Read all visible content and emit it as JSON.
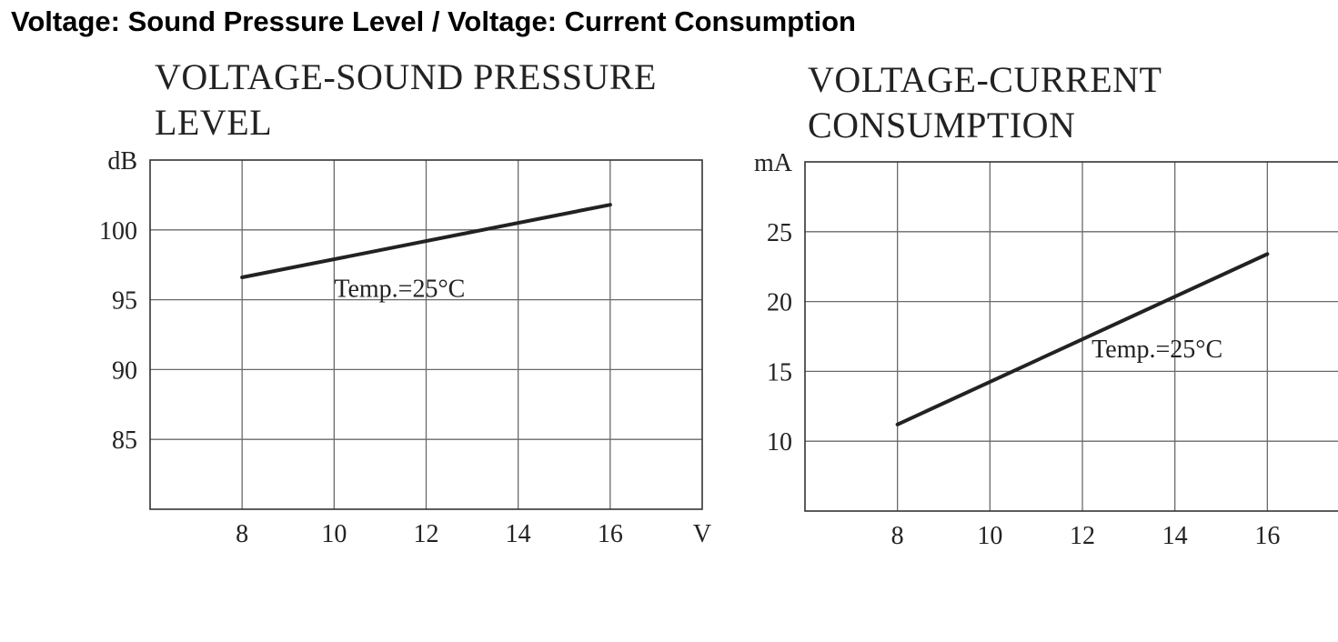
{
  "page": {
    "title": "Voltage: Sound Pressure Level / Voltage: Current Consumption"
  },
  "chart_data": [
    {
      "type": "line",
      "title_lines": [
        "VOLTAGE-SOUND PRESSURE",
        "LEVEL"
      ],
      "xlabel": "V",
      "ylabel": "dB",
      "xlim": [
        6,
        18
      ],
      "ylim": [
        80,
        105
      ],
      "x_ticks": [
        8,
        10,
        12,
        14,
        16
      ],
      "y_ticks": [
        85,
        90,
        95,
        100
      ],
      "grid": true,
      "series": [
        {
          "name": "Temp.=25°C",
          "x": [
            8,
            16
          ],
          "y": [
            96.6,
            101.8
          ]
        }
      ],
      "annotation": {
        "text": "Temp.=25°C",
        "x": 10,
        "y": 95.2
      }
    },
    {
      "type": "line",
      "title_lines": [
        "VOLTAGE-CURRENT",
        "CONSUMPTION"
      ],
      "xlabel": "",
      "ylabel": "mA",
      "xlim": [
        6,
        18
      ],
      "ylim": [
        5,
        30
      ],
      "x_ticks": [
        8,
        10,
        12,
        14,
        16
      ],
      "y_ticks": [
        10,
        15,
        20,
        25
      ],
      "grid": true,
      "series": [
        {
          "name": "Temp.=25°C",
          "x": [
            8,
            16
          ],
          "y": [
            11.2,
            23.4
          ]
        }
      ],
      "annotation": {
        "text": "Temp.=25°C",
        "x": 12.2,
        "y": 16.0
      }
    }
  ]
}
